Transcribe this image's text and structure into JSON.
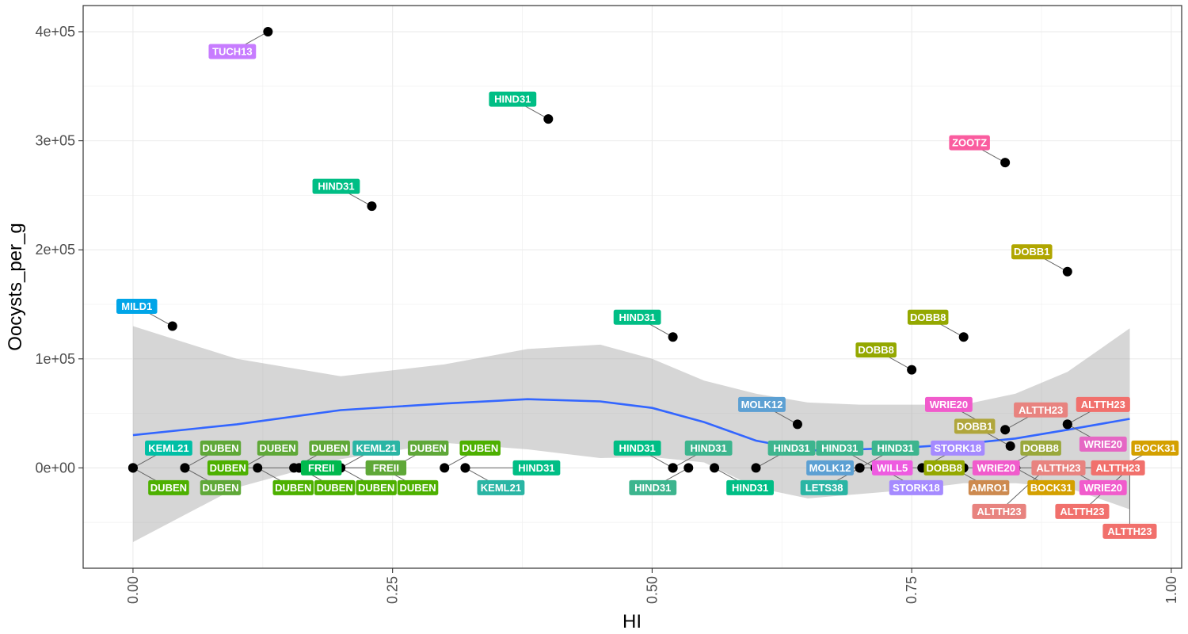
{
  "chart_data": {
    "type": "scatter",
    "xlabel": "HI",
    "ylabel": "Oocysts_per_g",
    "xlim": [
      -0.048,
      1.01
    ],
    "ylim": [
      -92000,
      424000
    ],
    "x_ticks": [
      0.0,
      0.25,
      0.5,
      0.75,
      1.0
    ],
    "x_tick_labels": [
      "0.00",
      "0.25",
      "0.50",
      "0.75",
      "1.00"
    ],
    "y_ticks": [
      0,
      100000,
      200000,
      300000,
      400000
    ],
    "y_tick_labels": [
      "0e+00",
      "1e+05",
      "2e+05",
      "3e+05",
      "4e+05"
    ],
    "grid": true,
    "smooth": {
      "color": "#3366FF",
      "x": [
        0.0,
        0.1,
        0.2,
        0.3,
        0.38,
        0.45,
        0.5,
        0.55,
        0.6,
        0.65,
        0.7,
        0.75,
        0.8,
        0.85,
        0.9,
        0.96
      ],
      "y": [
        30000,
        40000,
        53000,
        59000,
        63000,
        61000,
        55000,
        42000,
        25000,
        16000,
        17000,
        19000,
        22000,
        27000,
        35000,
        45000
      ],
      "upper": [
        130000,
        100000,
        84000,
        95000,
        109000,
        113000,
        100000,
        80000,
        68000,
        60000,
        58000,
        58000,
        58000,
        68000,
        88000,
        128000
      ],
      "lower": [
        -68000,
        -18000,
        8000,
        23000,
        17000,
        9000,
        10000,
        5000,
        -18000,
        -28000,
        -24000,
        -20000,
        -14000,
        -14000,
        -18000,
        -38000
      ]
    },
    "points": [
      {
        "x": 0.0,
        "y": 0,
        "label": "KEML21",
        "color": "#00BFA5"
      },
      {
        "x": 0.0,
        "y": 0,
        "label": "DUBEN",
        "color": "#4DB000"
      },
      {
        "x": 0.05,
        "y": 0,
        "label": "DUBEN",
        "color": "#5FA838"
      },
      {
        "x": 0.05,
        "y": 0,
        "label": "DUBEN",
        "color": "#5FA838"
      },
      {
        "x": 0.105,
        "y": 0,
        "label": "DUBEN",
        "color": "#5FA838"
      },
      {
        "x": 0.12,
        "y": 0,
        "label": "DUBEN",
        "color": "#4DB000"
      },
      {
        "x": 0.155,
        "y": 0,
        "label": "DUBEN",
        "color": "#5FA838"
      },
      {
        "x": 0.16,
        "y": 0,
        "label": "DUBEN",
        "color": "#4DB000"
      },
      {
        "x": 0.16,
        "y": 0,
        "label": "DUBEN",
        "color": "#4DB000"
      },
      {
        "x": 0.175,
        "y": 0,
        "label": "FREII",
        "color": "#5FA838"
      },
      {
        "x": 0.2,
        "y": 0,
        "label": "KEML21",
        "color": "#2AB5A4"
      },
      {
        "x": 0.2,
        "y": 0,
        "label": "DUBEN",
        "color": "#4DB000"
      },
      {
        "x": 0.24,
        "y": 0,
        "label": "DUBEN",
        "color": "#4DB000"
      },
      {
        "x": 0.25,
        "y": 0,
        "label": "DUBEN",
        "color": "#5FA838"
      },
      {
        "x": 0.25,
        "y": 0,
        "label": "FREII",
        "color": "#00B94D"
      },
      {
        "x": 0.3,
        "y": 0,
        "label": "DUBEN",
        "color": "#4DB000"
      },
      {
        "x": 0.32,
        "y": 0,
        "label": "KEML21",
        "color": "#2AB5A4"
      },
      {
        "x": 0.32,
        "y": 0,
        "label": "HIND31",
        "color": "#00BE85"
      },
      {
        "x": 0.038,
        "y": 130000,
        "label": "MILD1",
        "color": "#00A5E8"
      },
      {
        "x": 0.13,
        "y": 400000,
        "label": "TUCH13",
        "color": "#C77CFF"
      },
      {
        "x": 0.23,
        "y": 240000,
        "label": "HIND31",
        "color": "#00BE85"
      },
      {
        "x": 0.4,
        "y": 320000,
        "label": "HIND31",
        "color": "#00BE85"
      },
      {
        "x": 0.52,
        "y": 120000,
        "label": "HIND31",
        "color": "#00BE85"
      },
      {
        "x": 0.52,
        "y": 0,
        "label": "HIND31",
        "color": "#00BE85"
      },
      {
        "x": 0.52,
        "y": 0,
        "label": "HIND31",
        "color": "#3DB58E"
      },
      {
        "x": 0.535,
        "y": 0,
        "label": "HIND31",
        "color": "#3DB58E"
      },
      {
        "x": 0.56,
        "y": 0,
        "label": "HIND31",
        "color": "#00BE85"
      },
      {
        "x": 0.6,
        "y": 0,
        "label": "HIND31",
        "color": "#3DB58E"
      },
      {
        "x": 0.64,
        "y": 40000,
        "label": "MOLK12",
        "color": "#5CA0D3"
      },
      {
        "x": 0.7,
        "y": 0,
        "label": "HIND31",
        "color": "#3DB58E"
      },
      {
        "x": 0.7,
        "y": 0,
        "label": "LETS38",
        "color": "#2AB5A4"
      },
      {
        "x": 0.715,
        "y": 0,
        "label": "HIND31",
        "color": "#3DB58E"
      },
      {
        "x": 0.72,
        "y": 0,
        "label": "STORK18",
        "color": "#A58AFF"
      },
      {
        "x": 0.74,
        "y": 0,
        "label": "MOLK12",
        "color": "#5CA0D3"
      },
      {
        "x": 0.76,
        "y": 0,
        "label": "STORK18",
        "color": "#A58AFF"
      },
      {
        "x": 0.75,
        "y": 90000,
        "label": "DOBB8",
        "color": "#94A800"
      },
      {
        "x": 0.79,
        "y": 0,
        "label": "AMRO1",
        "color": "#CD8A4F"
      },
      {
        "x": 0.8,
        "y": 0,
        "label": "WILL5",
        "color": "#EE5BE0"
      },
      {
        "x": 0.8,
        "y": 120000,
        "label": "DOBB8",
        "color": "#94A800"
      },
      {
        "x": 0.82,
        "y": 40000,
        "label": "WRIE20",
        "color": "#F15BCC"
      },
      {
        "x": 0.84,
        "y": 280000,
        "label": "ZOOTZ",
        "color": "#FA5C9F"
      },
      {
        "x": 0.84,
        "y": 35000,
        "label": "ALTTH23",
        "color": "#E8837F"
      },
      {
        "x": 0.84,
        "y": 0,
        "label": "DOBB8",
        "color": "#9AA83C"
      },
      {
        "x": 0.845,
        "y": 20000,
        "label": "DOBB1",
        "color": "#B0A63C"
      },
      {
        "x": 0.85,
        "y": 0,
        "label": "BOCK31",
        "color": "#D4A000"
      },
      {
        "x": 0.85,
        "y": 0,
        "label": "DOBB8",
        "color": "#94A800"
      },
      {
        "x": 0.88,
        "y": 0,
        "label": "ALTTH23",
        "color": "#F1706C"
      },
      {
        "x": 0.88,
        "y": 0,
        "label": "ALTTH23",
        "color": "#E8837F"
      },
      {
        "x": 0.9,
        "y": 180000,
        "label": "DOBB1",
        "color": "#B0A600"
      },
      {
        "x": 0.9,
        "y": 40000,
        "label": "ALTTH23",
        "color": "#F1706C"
      },
      {
        "x": 0.9,
        "y": 40000,
        "label": "WRIE20",
        "color": "#E567C4"
      },
      {
        "x": 0.9,
        "y": 0,
        "label": "WRIE20",
        "color": "#F15BCC"
      },
      {
        "x": 0.9,
        "y": 0,
        "label": "WRIE20",
        "color": "#F15BCC"
      },
      {
        "x": 0.95,
        "y": 0,
        "label": "BOCK31",
        "color": "#D4A000"
      },
      {
        "x": 0.96,
        "y": 0,
        "label": "ALTTH23",
        "color": "#E8837F"
      },
      {
        "x": 0.96,
        "y": 0,
        "label": "ALTTH23",
        "color": "#F1706C"
      },
      {
        "x": 0.96,
        "y": 0,
        "label": "ALTTH23",
        "color": "#F1706C"
      }
    ]
  }
}
